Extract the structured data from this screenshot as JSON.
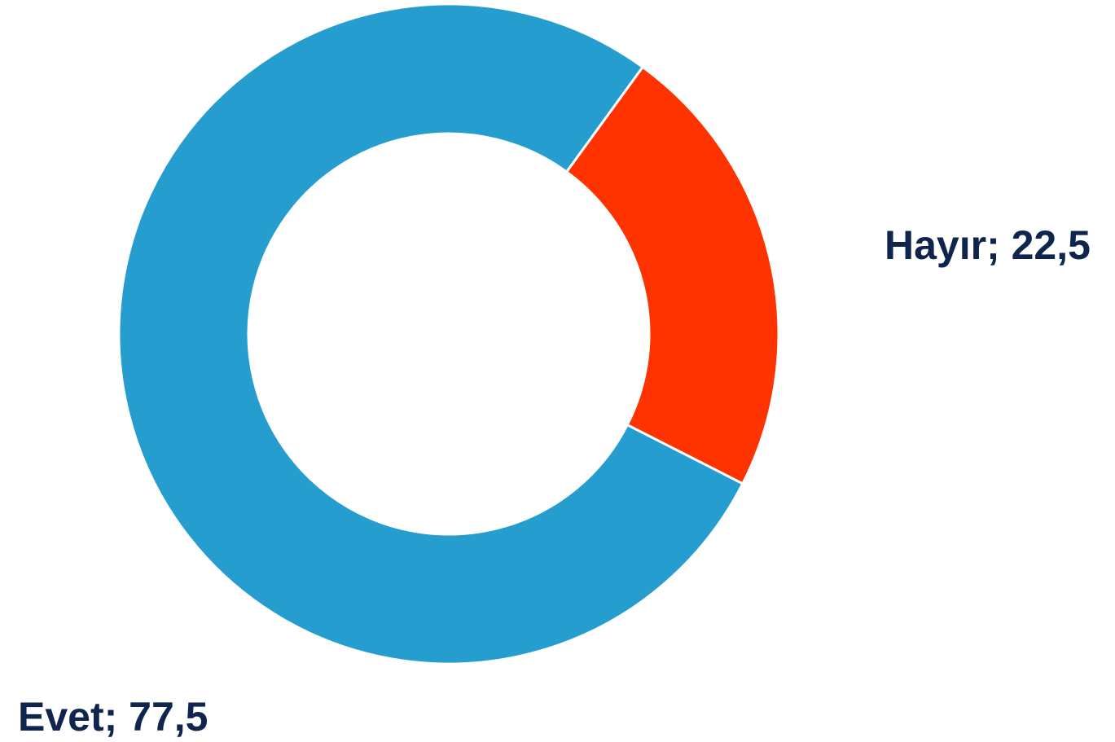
{
  "chart_data": {
    "type": "pie",
    "subtype": "donut",
    "slices": [
      {
        "label": "Evet",
        "value": 77.5,
        "data_label": "Evet; 77,5",
        "color": "#259ECF"
      },
      {
        "label": "Hayır",
        "value": 22.5,
        "data_label": "Hayır; 22,5",
        "color": "#FF3300"
      }
    ],
    "label_color": "#10254E",
    "separator_color": "#ffffff",
    "legend": "none"
  }
}
